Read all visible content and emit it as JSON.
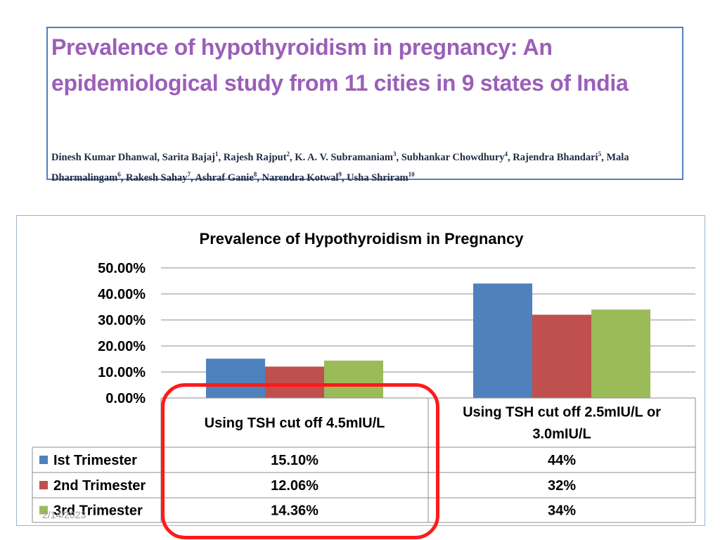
{
  "paper": {
    "title": "Prevalence of hypothyroidism in pregnancy: An epidemiological study from 11 cities in 9 states of India",
    "authors": [
      {
        "name": "Dinesh Kumar Dhanwal",
        "sup": ""
      },
      {
        "name": "Sarita Bajaj",
        "sup": "1"
      },
      {
        "name": "Rajesh Rajput",
        "sup": "2"
      },
      {
        "name": "K. A. V. Subramaniam",
        "sup": "3"
      },
      {
        "name": "Subhankar Chowdhury",
        "sup": "4"
      },
      {
        "name": "Rajendra Bhandari",
        "sup": "5"
      },
      {
        "name": "Mala Dharmalingam",
        "sup": "6"
      },
      {
        "name": "Rakesh Sahay",
        "sup": "7"
      },
      {
        "name": "Ashraf Ganie",
        "sup": "8"
      },
      {
        "name": "Narendra Kotwal",
        "sup": "9"
      },
      {
        "name": "Usha Shriram",
        "sup": "10"
      }
    ]
  },
  "slide_date": "2/14/2023",
  "colors": {
    "series": [
      "#4f81bd",
      "#c0504d",
      "#9bbb59"
    ],
    "highlight": "#ff1a1a",
    "paper_title": "#9b5fb8",
    "paper_border": "#4f81bd"
  },
  "chart_data": {
    "type": "bar",
    "title": "Prevalence of Hypothyroidism in Pregnancy",
    "xlabel": "",
    "ylabel": "",
    "categories": [
      "Using TSH cut off 4.5mIU/L",
      "Using TSH cut off 2.5mIU/L or 3.0mIU/L"
    ],
    "category_lines": [
      [
        "Using TSH cut off 4.5mIU/L"
      ],
      [
        "Using TSH cut off 2.5mIU/L or",
        "3.0mIU/L"
      ]
    ],
    "series": [
      {
        "name": "Ist Trimester",
        "values": [
          15.1,
          44
        ],
        "labels": [
          "15.10%",
          "44%"
        ]
      },
      {
        "name": "2nd Trimester",
        "values": [
          12.06,
          32
        ],
        "labels": [
          "12.06%",
          "32%"
        ]
      },
      {
        "name": "3rd Trimester",
        "values": [
          14.36,
          34
        ],
        "labels": [
          "14.36%",
          "34%"
        ]
      }
    ],
    "ylim": [
      0,
      50
    ],
    "yticks": [
      {
        "value": 0,
        "label": "0.00%"
      },
      {
        "value": 10,
        "label": "10.00%"
      },
      {
        "value": 20,
        "label": "20.00%"
      },
      {
        "value": 30,
        "label": "30.00%"
      },
      {
        "value": 40,
        "label": "40.00%"
      },
      {
        "value": 50,
        "label": "50.00%"
      }
    ],
    "grid": true,
    "legend": "data-table-bottom"
  }
}
